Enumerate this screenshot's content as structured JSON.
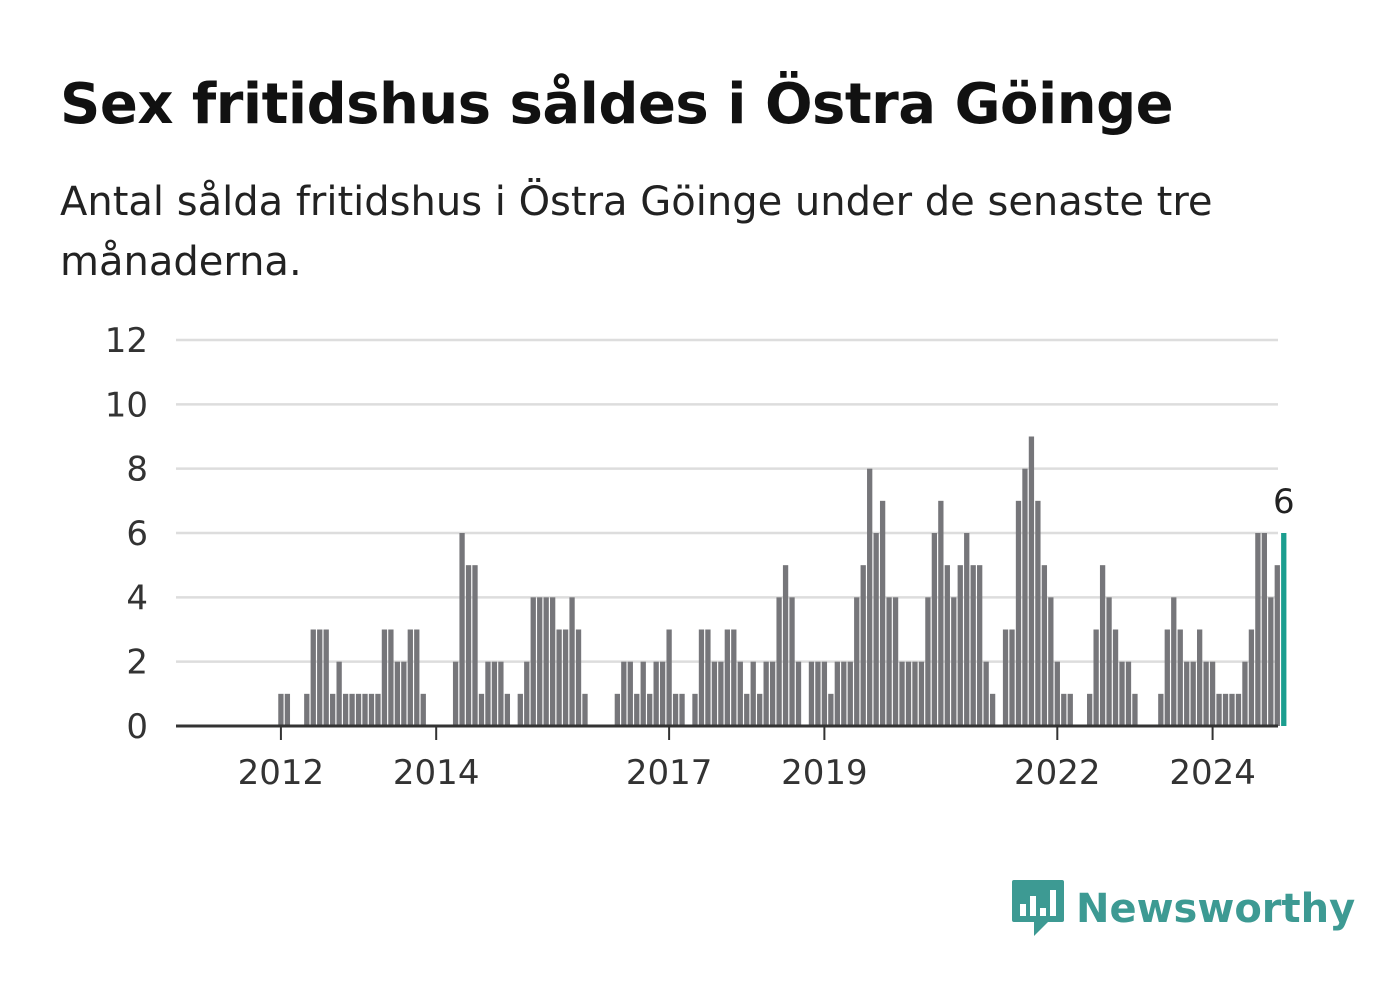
{
  "title": "Sex fritidshus såldes i Östra Göinge",
  "subtitle": "Antal sålda fritidshus i Östra Göinge under de senaste tre månaderna.",
  "brand": {
    "name": "Newsworthy",
    "color": "#3d9a93",
    "icon": "bar-chart-speech-bubble-icon"
  },
  "chart_data": {
    "type": "bar",
    "title": "Sex fritidshus såldes i Östra Göinge",
    "subtitle": "Antal sålda fritidshus i Östra Göinge under de senaste tre månaderna.",
    "xlabel": "",
    "ylabel": "",
    "ylim": [
      0,
      12
    ],
    "yticks": [
      "0",
      "2",
      "4",
      "6",
      "8",
      "10",
      "12"
    ],
    "xticks": [
      {
        "label": "2012",
        "index": 8
      },
      {
        "label": "2014",
        "index": 32
      },
      {
        "label": "2017",
        "index": 68
      },
      {
        "label": "2019",
        "index": 92
      },
      {
        "label": "2022",
        "index": 128
      },
      {
        "label": "2024",
        "index": 152
      }
    ],
    "grid": true,
    "legend": "none",
    "bar_color": "#76767a",
    "highlight_color": "#1b9e8f",
    "highlight_index": 163,
    "highlight_label": "6",
    "values": [
      0,
      0,
      0,
      0,
      0,
      0,
      0,
      0,
      1,
      1,
      0,
      0,
      1,
      3,
      3,
      3,
      1,
      2,
      1,
      1,
      1,
      1,
      1,
      1,
      3,
      3,
      2,
      2,
      3,
      3,
      1,
      0,
      0,
      0,
      0,
      2,
      6,
      5,
      5,
      1,
      2,
      2,
      2,
      1,
      0,
      1,
      2,
      4,
      4,
      4,
      4,
      3,
      3,
      4,
      3,
      1,
      0,
      0,
      0,
      0,
      1,
      2,
      2,
      1,
      2,
      1,
      2,
      2,
      3,
      1,
      1,
      0,
      1,
      3,
      3,
      2,
      2,
      3,
      3,
      2,
      1,
      2,
      1,
      2,
      2,
      4,
      5,
      4,
      2,
      0,
      2,
      2,
      2,
      1,
      2,
      2,
      2,
      4,
      5,
      8,
      6,
      7,
      4,
      4,
      2,
      2,
      2,
      2,
      4,
      6,
      7,
      5,
      4,
      5,
      6,
      5,
      5,
      2,
      1,
      0,
      3,
      3,
      7,
      8,
      9,
      7,
      5,
      4,
      2,
      1,
      1,
      0,
      0,
      1,
      3,
      5,
      4,
      3,
      2,
      2,
      1,
      0,
      0,
      0,
      1,
      3,
      4,
      3,
      2,
      2,
      3,
      2,
      2,
      1,
      1,
      1,
      1,
      2,
      3,
      6,
      6,
      4,
      5,
      6
    ]
  }
}
